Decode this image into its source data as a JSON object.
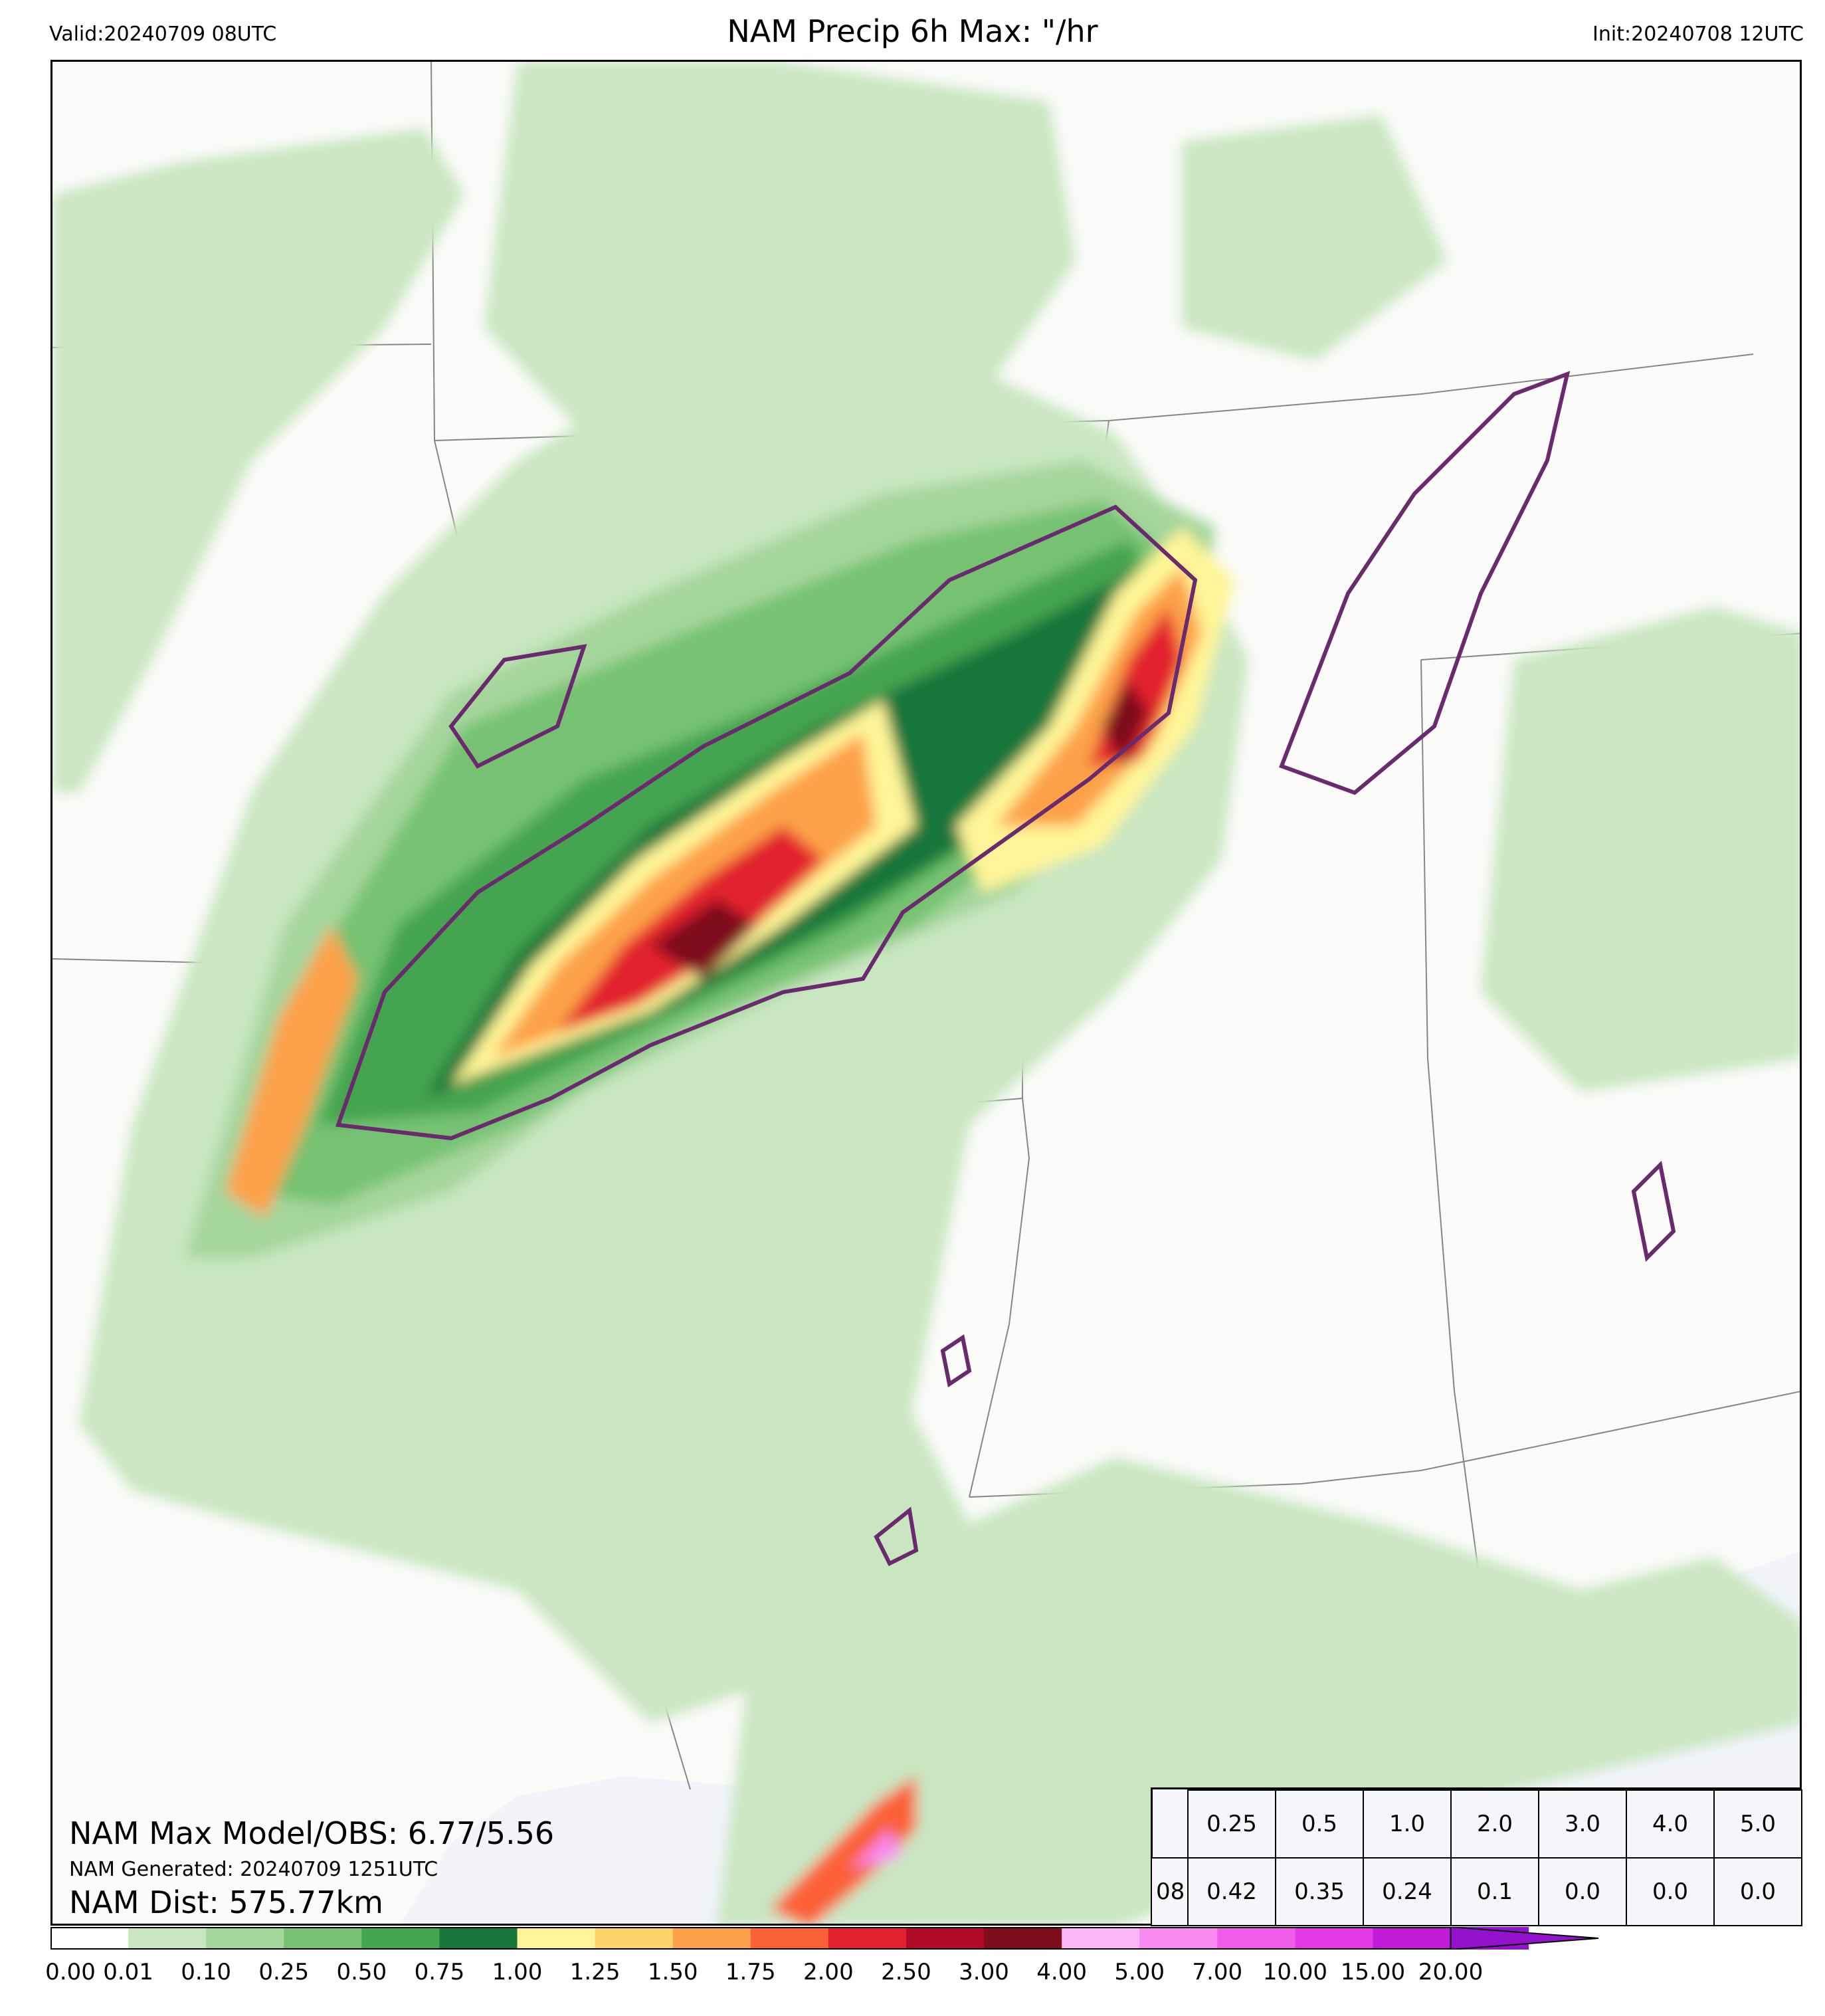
{
  "header": {
    "valid": "Valid:20240709 08UTC",
    "title": "NAM Precip 6h Max: \"/hr",
    "init": "Init:20240708 12UTC"
  },
  "stats": {
    "max": "NAM Max Model/OBS: 6.77/5.56",
    "generated": "NAM Generated: 20240709 1251UTC",
    "dist": "NAM Dist: 575.77km"
  },
  "table": {
    "thresholds": [
      "0.25",
      "0.5",
      "1.0",
      "2.0",
      "3.0",
      "4.0",
      "5.0"
    ],
    "row_label": "08",
    "values": [
      "0.42",
      "0.35",
      "0.24",
      "0.1",
      "0.0",
      "0.0",
      "0.0"
    ]
  },
  "colorbar": {
    "ticks": [
      "0.00",
      "0.01",
      "0.10",
      "0.25",
      "0.50",
      "0.75",
      "1.00",
      "1.25",
      "1.50",
      "1.75",
      "2.00",
      "2.50",
      "3.00",
      "4.00",
      "5.00",
      "7.00",
      "10.00",
      "15.00",
      "20.00"
    ],
    "colors": [
      "#ffffff",
      "#c9e6c1",
      "#a4d59b",
      "#76c272",
      "#44a450",
      "#19763a",
      "#fff598",
      "#fed26a",
      "#fda14a",
      "#fb6136",
      "#e2212f",
      "#b20a2b",
      "#7d0d1d",
      "#fab7f5",
      "#f88af0",
      "#f05ee9",
      "#e23ae5",
      "#c31ad8",
      "#9512cc"
    ]
  },
  "colors": {
    "obs_contour": "#6a2a6e",
    "water": "#f2f4fa",
    "land": "#fbfbf9"
  }
}
